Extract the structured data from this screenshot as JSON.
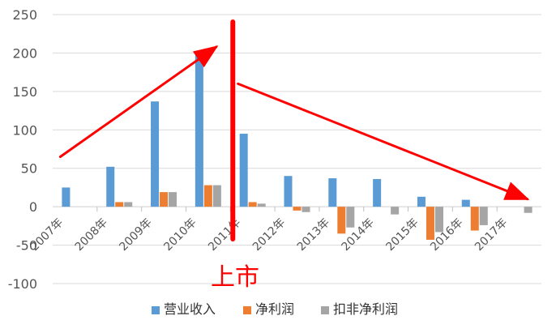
{
  "chart_data": {
    "type": "bar",
    "title": "",
    "xlabel": "",
    "ylabel": "",
    "ylim": [
      -100,
      250
    ],
    "yticks": [
      -100,
      -50,
      0,
      50,
      100,
      150,
      200,
      250
    ],
    "categories": [
      "2007年",
      "2008年",
      "2009年",
      "2010年",
      "2011年",
      "2012年",
      "2013年",
      "2014年",
      "2015年",
      "2016年",
      "2017年"
    ],
    "series": [
      {
        "name": "营业收入",
        "color": "#5B9BD5",
        "values": [
          25,
          52,
          137,
          203,
          95,
          40,
          37,
          36,
          13,
          9,
          0
        ]
      },
      {
        "name": "净利润",
        "color": "#ED7D31",
        "values": [
          0,
          6,
          19,
          28,
          6,
          -5,
          -35,
          0,
          -43,
          -31,
          0
        ]
      },
      {
        "name": "扣非净利润",
        "color": "#A5A5A5",
        "values": [
          0,
          6,
          19,
          28,
          4,
          -7,
          -27,
          -10,
          -33,
          -24,
          -8
        ]
      }
    ],
    "legend_position": "bottom",
    "grid": true,
    "annotations": [
      {
        "type": "text",
        "text": "上市",
        "color": "#FF0000"
      },
      {
        "type": "vertical-line",
        "between": [
          "2010年",
          "2011年"
        ],
        "color": "#FF0000"
      },
      {
        "type": "arrow",
        "from": [
          "2007年",
          65
        ],
        "to": [
          "2010年",
          208
        ],
        "color": "#FF0000"
      },
      {
        "type": "arrow",
        "from": [
          "2011年",
          160
        ],
        "to": [
          "2017年",
          10
        ],
        "color": "#FF0000"
      }
    ]
  }
}
